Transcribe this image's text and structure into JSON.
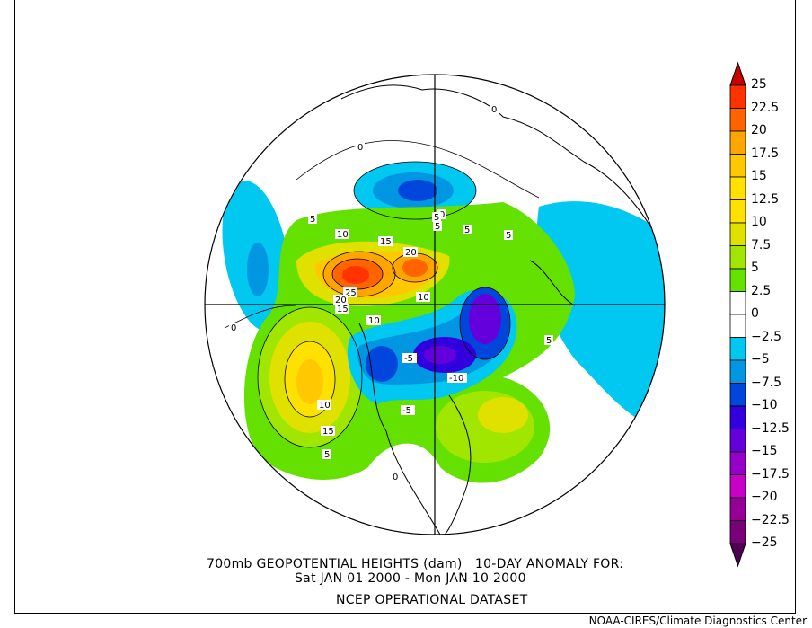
{
  "title": {
    "line1": "700mb GEOPOTENTIAL HEIGHTS (dam)   10-DAY ANOMALY FOR:",
    "line2": "Sat JAN 01 2000 - Mon JAN 10 2000",
    "line3": "NCEP OPERATIONAL DATASET"
  },
  "credit": "NOAA-CIRES/Climate Diagnostics Center",
  "map": {
    "projection": "north polar stereographic",
    "variable": "700mb geopotential height anomaly (dam)",
    "contour_labels": [
      "0",
      "0",
      "0",
      "0",
      "5",
      "5",
      "5",
      "5",
      "5",
      "10",
      "15",
      "20",
      "25",
      "20",
      "15",
      "10",
      "10",
      "15",
      "10",
      "5",
      "0",
      "-5",
      "-5",
      "-10",
      "5"
    ]
  },
  "colorbar": {
    "labels": [
      "25",
      "22.5",
      "20",
      "17.5",
      "15",
      "12.5",
      "10",
      "7.5",
      "5",
      "2.5",
      "0",
      "-2.5",
      "-5",
      "-7.5",
      "-10",
      "-12.5",
      "-15",
      "-17.5",
      "-20",
      "-22.5",
      "-25"
    ],
    "over_color": "#c80000",
    "under_color": "#500050",
    "bin_colors": [
      "#ff3200",
      "#ff6400",
      "#ffa500",
      "#ffc800",
      "#ffe100",
      "#ffe100",
      "#e1e100",
      "#a0e600",
      "#64e100",
      "#ffffff",
      "#ffffff",
      "#00c8f0",
      "#0096e1",
      "#0046dc",
      "#3200dc",
      "#6400dc",
      "#9600c8",
      "#c800c8",
      "#960096",
      "#780078"
    ]
  }
}
